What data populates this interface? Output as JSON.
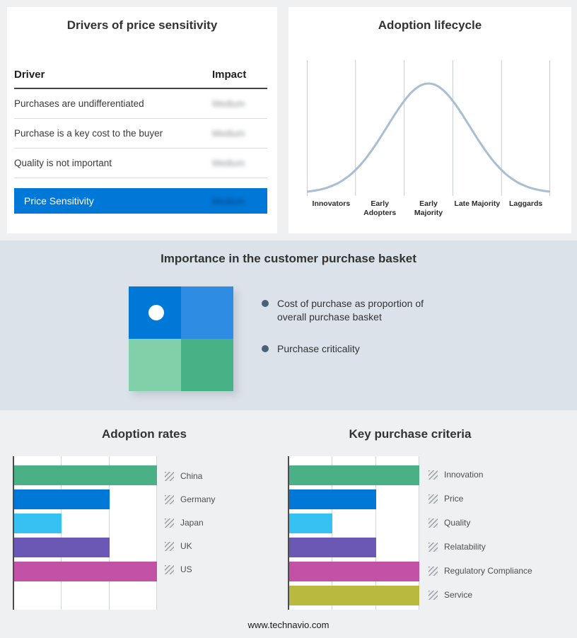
{
  "page": {
    "footer_text": "www.technavio.com",
    "background": "#eef0f2",
    "band_background": "#dbe2ea",
    "accent": "#0078d7"
  },
  "drivers": {
    "title": "Drivers of price sensitivity",
    "columns": {
      "driver": "Driver",
      "impact": "Impact"
    },
    "rows": [
      {
        "driver": "Purchases are undifferentiated",
        "impact": "Medium"
      },
      {
        "driver": "Purchase is a key cost to the buyer",
        "impact": "Medium"
      },
      {
        "driver": "Quality is not important",
        "impact": "Medium"
      }
    ],
    "summary_row": {
      "driver": "Price Sensitivity",
      "impact": "Medium"
    }
  },
  "basket": {
    "title": "Importance in the customer purchase basket",
    "bullets": [
      "Cost of purchase as proportion of overall purchase basket",
      "Purchase criticality"
    ],
    "quadrant_colors": [
      "#0078d7",
      "#2e8de2",
      "#82d0a9",
      "#47b286"
    ],
    "bullet_dot_color": "#4a6078"
  },
  "chart_data": [
    {
      "id": "adoption-lifecycle",
      "type": "line",
      "title": "Adoption lifecycle",
      "x_categories": [
        "Innovators",
        "Early Adopters",
        "Early Majority",
        "Late Majority",
        "Laggards"
      ],
      "curve": {
        "shape": "gaussian",
        "mean": 0.5,
        "sigma": 0.17,
        "peak": 1.0
      },
      "line_color": "#a9bdd3",
      "grid": true,
      "xlabel": "",
      "ylabel": ""
    },
    {
      "id": "adoption-rates",
      "type": "bar",
      "orientation": "horizontal",
      "title": "Adoption rates",
      "categories": [
        "China",
        "Germany",
        "Japan",
        "UK",
        "US"
      ],
      "values": [
        3,
        2,
        1,
        2,
        3
      ],
      "xlim": [
        0,
        3
      ],
      "bar_colors": [
        "#49b185",
        "#0078d7",
        "#35c2f2",
        "#6b57b4",
        "#c152a6"
      ],
      "grid": true,
      "legend_position": "right"
    },
    {
      "id": "key-purchase-criteria",
      "type": "bar",
      "orientation": "horizontal",
      "title": "Key purchase criteria",
      "categories": [
        "Innovation",
        "Price",
        "Quality",
        "Relatability",
        "Regulatory Compliance",
        "Service"
      ],
      "values": [
        3,
        2,
        1,
        2,
        3,
        3
      ],
      "xlim": [
        0,
        3
      ],
      "bar_colors": [
        "#49b185",
        "#0078d7",
        "#35c2f2",
        "#6b57b4",
        "#c152a6",
        "#b8b93e"
      ],
      "grid": true,
      "legend_position": "right"
    }
  ]
}
